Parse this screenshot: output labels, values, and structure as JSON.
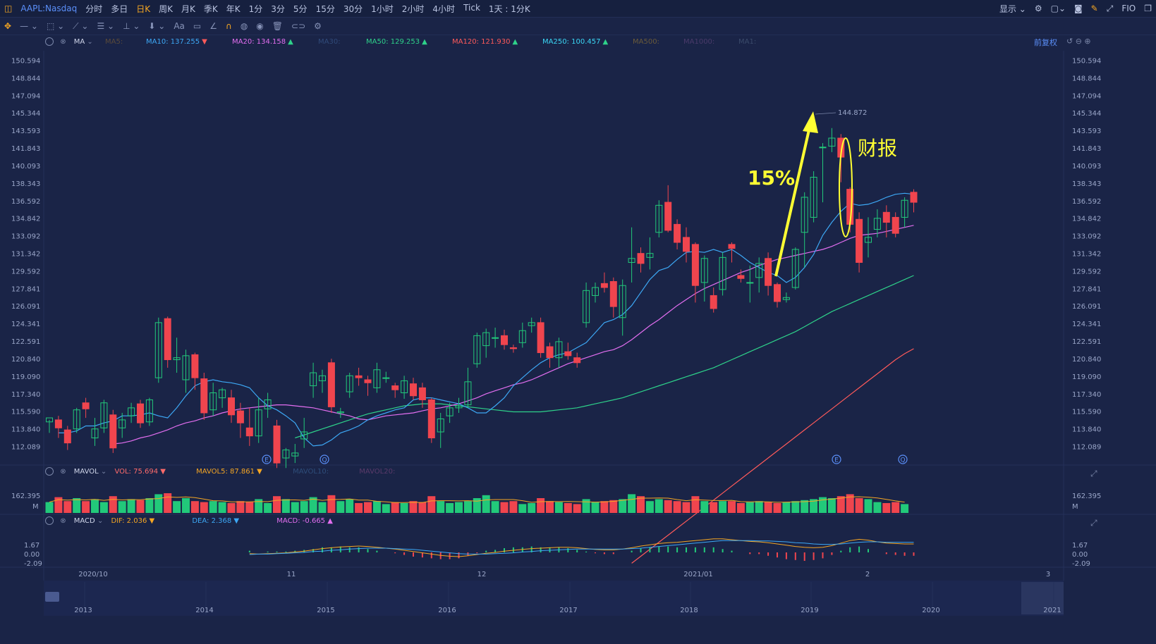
{
  "topbar": {
    "symbol": "AAPL:Nasdaq",
    "periods": [
      "分时",
      "多日",
      "日K",
      "周K",
      "月K",
      "季K",
      "年K",
      "1分",
      "3分",
      "5分",
      "15分",
      "30分",
      "1小时",
      "2小时",
      "4小时",
      "Tick",
      "1天 : 1分K"
    ],
    "active": "日K",
    "display_label": "显示",
    "fio_label": "FIO"
  },
  "ma_legend": {
    "title": "MA",
    "items": [
      {
        "label": "MA5:",
        "value": "",
        "color": "#5a4a3a"
      },
      {
        "label": "MA10:",
        "value": "137.255",
        "color": "#3da8f5",
        "arrow": "▼"
      },
      {
        "label": "MA20:",
        "value": "134.158",
        "color": "#e36ef0",
        "arrow": "▲"
      },
      {
        "label": "MA30:",
        "value": "",
        "color": "#304a7a"
      },
      {
        "label": "MA50:",
        "value": "129.253",
        "color": "#2ed28a",
        "arrow": "▲"
      },
      {
        "label": "MA120:",
        "value": "121.930",
        "color": "#ff5a5a",
        "arrow": "▲"
      },
      {
        "label": "MA250:",
        "value": "100.457",
        "color": "#3ad7f5",
        "arrow": "▲"
      },
      {
        "label": "MA500:",
        "value": "",
        "color": "#6a5a3a"
      },
      {
        "label": "MA1000:",
        "value": "",
        "color": "#4a3a6a"
      },
      {
        "label": "MA1:",
        "value": "",
        "color": "#3a4a6a"
      }
    ],
    "right_label": "前复权"
  },
  "vol_legend": {
    "title": "MAVOL",
    "vol": "VOL: 75.694 ▼",
    "mavol5": "MAVOL5: 87.861 ▼",
    "mavol10": "MAVOL10:",
    "mavol20": "MAVOL20:",
    "top_value": "162.395",
    "unit": "M"
  },
  "macd_legend": {
    "title": "MACD",
    "dif": "DIF: 2.036 ▼",
    "dea": "DEA: 2.368 ▼",
    "macd": "MACD: -0.665 ▲",
    "ticks": [
      "1.67",
      "0.00",
      "-2.09"
    ]
  },
  "price_axis": [
    "150.594",
    "148.844",
    "147.094",
    "145.344",
    "143.593",
    "141.843",
    "140.093",
    "138.343",
    "136.592",
    "134.842",
    "133.092",
    "131.342",
    "129.592",
    "127.841",
    "126.091",
    "124.341",
    "122.591",
    "120.840",
    "119.090",
    "117.340",
    "115.590",
    "113.840",
    "112.089"
  ],
  "date_axis": [
    "2020/10",
    "11",
    "12",
    "2021/01",
    "2",
    "3"
  ],
  "year_axis": [
    "2013",
    "2014",
    "2015",
    "2016",
    "2017",
    "2018",
    "2019",
    "2020",
    "2021"
  ],
  "annotations": {
    "peak_label": "144.872",
    "pct_label": "15%",
    "earnings_label": "财报",
    "event_markers": [
      "E",
      "Q",
      "E",
      "Q"
    ]
  },
  "chart_data": {
    "type": "candlestick",
    "title": "AAPL:Nasdaq 日K",
    "ylim": [
      111.0,
      151.5
    ],
    "candles": [
      [
        114.6,
        115.0,
        113.5,
        114.8
      ],
      [
        114.8,
        114.0,
        113.0,
        115.2
      ],
      [
        113.8,
        112.5,
        111.8,
        114.2
      ],
      [
        113.9,
        115.8,
        113.5,
        116.0
      ],
      [
        116.5,
        115.9,
        115.0,
        117.0
      ],
      [
        113.0,
        113.9,
        112.2,
        115.0
      ],
      [
        114.0,
        116.5,
        113.5,
        116.8
      ],
      [
        115.3,
        112.0,
        111.5,
        115.8
      ],
      [
        114.0,
        114.8,
        113.0,
        115.5
      ],
      [
        115.2,
        116.0,
        114.5,
        116.5
      ],
      [
        116.4,
        114.5,
        114.0,
        116.8
      ],
      [
        114.6,
        116.8,
        114.2,
        117.0
      ],
      [
        119.0,
        124.5,
        118.5,
        125.0
      ],
      [
        124.9,
        120.8,
        120.0,
        125.1
      ],
      [
        120.8,
        121.0,
        119.5,
        123.0
      ],
      [
        118.8,
        121.2,
        117.5,
        121.8
      ],
      [
        121.3,
        119.0,
        117.8,
        121.5
      ],
      [
        118.9,
        115.5,
        114.8,
        119.5
      ],
      [
        115.8,
        117.5,
        115.2,
        118.5
      ],
      [
        117.0,
        117.8,
        116.0,
        118.0
      ],
      [
        117.0,
        115.3,
        114.5,
        117.8
      ],
      [
        115.7,
        114.5,
        113.0,
        116.5
      ],
      [
        114.0,
        113.2,
        112.2,
        116.0
      ],
      [
        113.2,
        115.8,
        112.5,
        117.0
      ],
      [
        115.9,
        116.8,
        115.0,
        117.5
      ],
      [
        114.2,
        110.5,
        110.0,
        114.8
      ],
      [
        111.0,
        111.8,
        110.0,
        112.0
      ],
      [
        111.2,
        111.5,
        110.5,
        112.4
      ],
      [
        112.9,
        113.6,
        112.0,
        115.0
      ],
      [
        118.2,
        119.5,
        117.0,
        120.5
      ],
      [
        118.7,
        119.2,
        117.5,
        119.8
      ],
      [
        120.5,
        116.1,
        115.5,
        120.9
      ],
      [
        115.5,
        115.6,
        115.0,
        116.0
      ],
      [
        117.6,
        119.2,
        117.0,
        119.5
      ],
      [
        119.2,
        119.0,
        118.2,
        120.0
      ],
      [
        118.8,
        118.5,
        117.2,
        119.2
      ],
      [
        118.0,
        119.8,
        117.5,
        120.5
      ],
      [
        119.0,
        119.0,
        118.5,
        119.6
      ],
      [
        118.2,
        117.8,
        117.0,
        118.5
      ],
      [
        117.5,
        118.7,
        116.9,
        119.2
      ],
      [
        118.4,
        117.2,
        116.8,
        119.0
      ],
      [
        118.0,
        116.8,
        116.0,
        118.5
      ],
      [
        116.8,
        113.0,
        112.5,
        117.0
      ],
      [
        113.6,
        114.9,
        112.0,
        115.5
      ],
      [
        115.2,
        116.0,
        114.5,
        116.5
      ],
      [
        116.0,
        116.2,
        115.5,
        117.0
      ],
      [
        116.3,
        118.6,
        116.0,
        120.0
      ],
      [
        120.4,
        123.2,
        120.0,
        123.5
      ],
      [
        122.2,
        123.5,
        121.0,
        123.9
      ],
      [
        123.0,
        123.0,
        122.0,
        124.0
      ],
      [
        123.2,
        122.3,
        121.8,
        123.8
      ],
      [
        122.0,
        121.9,
        121.5,
        122.3
      ],
      [
        122.5,
        123.7,
        122.0,
        124.5
      ],
      [
        124.2,
        124.5,
        123.5,
        125.0
      ],
      [
        124.5,
        121.5,
        121.0,
        125.0
      ],
      [
        122.1,
        121.0,
        120.0,
        122.5
      ],
      [
        121.0,
        122.6,
        120.0,
        123.0
      ],
      [
        121.6,
        121.2,
        120.8,
        122.5
      ],
      [
        121.0,
        120.5,
        120.0,
        121.5
      ],
      [
        124.5,
        127.7,
        124.0,
        128.5
      ],
      [
        127.2,
        128.0,
        126.5,
        128.5
      ],
      [
        128.4,
        128.0,
        127.5,
        129.5
      ],
      [
        128.6,
        126.1,
        125.0,
        129.0
      ],
      [
        125.0,
        128.2,
        123.2,
        128.8
      ],
      [
        130.5,
        130.9,
        128.5,
        134.0
      ],
      [
        131.4,
        130.4,
        129.5,
        132.0
      ],
      [
        131.0,
        131.4,
        129.8,
        133.0
      ],
      [
        133.5,
        136.2,
        133.0,
        136.7
      ],
      [
        136.5,
        133.7,
        133.5,
        138.2
      ],
      [
        134.3,
        132.5,
        131.8,
        134.8
      ],
      [
        133.0,
        131.6,
        130.5,
        134.0
      ],
      [
        132.3,
        128.2,
        126.5,
        132.5
      ],
      [
        128.5,
        130.9,
        126.6,
        131.2
      ],
      [
        127.2,
        125.9,
        125.5,
        128.0
      ],
      [
        127.8,
        131.0,
        127.2,
        131.5
      ],
      [
        132.3,
        131.9,
        130.5,
        132.5
      ],
      [
        129.2,
        128.9,
        128.5,
        129.8
      ],
      [
        128.5,
        128.5,
        126.5,
        130.2
      ],
      [
        129.0,
        130.4,
        127.5,
        131.0
      ],
      [
        130.9,
        128.2,
        127.2,
        131.5
      ],
      [
        128.3,
        126.6,
        126.0,
        128.5
      ],
      [
        126.8,
        127.0,
        126.5,
        127.5
      ],
      [
        128.0,
        131.8,
        127.8,
        132.0
      ],
      [
        133.5,
        137.0,
        130.0,
        137.5
      ],
      [
        135.0,
        139.0,
        134.5,
        139.6
      ],
      [
        142.0,
        142.0,
        136.5,
        142.4
      ],
      [
        142.1,
        142.9,
        141.5,
        143.9
      ],
      [
        142.9,
        141.0,
        138.5,
        143.3
      ],
      [
        137.8,
        134.3,
        133.5,
        138.0
      ],
      [
        134.8,
        130.5,
        129.5,
        135.5
      ],
      [
        132.5,
        133.0,
        131.0,
        135.0
      ],
      [
        133.8,
        134.9,
        133.0,
        135.8
      ],
      [
        135.5,
        134.5,
        133.0,
        136.2
      ],
      [
        135.0,
        133.4,
        133.0,
        135.5
      ],
      [
        135.0,
        136.7,
        134.0,
        137.0
      ],
      [
        137.5,
        136.5,
        135.5,
        137.8
      ]
    ],
    "ma10": [
      113.5,
      113.5,
      113.7,
      114.2,
      114.2,
      114.5,
      114.7,
      115.2,
      115.2,
      115.3,
      115.5,
      115.2,
      115.0,
      116.0,
      117.2,
      118.2,
      118.6,
      118.8,
      118.6,
      118.5,
      118.3,
      118.0,
      117.0,
      116.2,
      115.8,
      115.2,
      114.5,
      113.0,
      112.2,
      112.3,
      112.8,
      113.5,
      113.8,
      114.2,
      114.8,
      115.2,
      115.5,
      115.8,
      116.0,
      116.8,
      117.0,
      117.0,
      116.8,
      116.6,
      116.4,
      116.0,
      115.5,
      115.5,
      116.2,
      117.0,
      118.2,
      119.0,
      119.8,
      120.5,
      121.0,
      121.3,
      121.5,
      122.0,
      122.5,
      123.5,
      124.5,
      124.8,
      125.3,
      126.2,
      127.5,
      128.8,
      129.7,
      130.0,
      130.8,
      131.5,
      131.6,
      131.5,
      131.8,
      131.5,
      131.8,
      131.2,
      130.5,
      130.0,
      129.5,
      129.2,
      128.5,
      129.0,
      130.0,
      131.3,
      133.2,
      134.5,
      135.6,
      136.4,
      136.2,
      136.3,
      136.6,
      137.0,
      137.3,
      137.4,
      137.3
    ],
    "ma20": [
      112.4,
      112.5,
      112.7,
      113.0,
      113.2,
      113.5,
      113.8,
      114.2,
      114.5,
      114.7,
      115.0,
      115.2,
      115.5,
      115.7,
      115.9,
      116.0,
      116.1,
      116.2,
      116.3,
      116.3,
      116.2,
      116.1,
      116.0,
      115.8,
      115.6,
      115.4,
      115.2,
      114.9,
      114.8,
      115.0,
      115.2,
      115.3,
      115.4,
      115.5,
      115.7,
      115.9,
      116.0,
      116.2,
      116.4,
      116.7,
      117.0,
      117.4,
      117.7,
      118.0,
      118.3,
      118.5,
      118.8,
      119.2,
      119.6,
      120.0,
      120.4,
      120.7,
      121.0,
      121.3,
      121.6,
      121.8,
      122.2,
      122.8,
      123.5,
      124.2,
      124.8,
      125.5,
      126.2,
      126.8,
      127.4,
      127.9,
      128.3,
      128.7,
      129.1,
      129.5,
      129.8,
      130.2,
      130.5,
      130.8,
      131.0,
      131.2,
      131.4,
      131.6,
      131.8,
      132.1,
      132.5,
      132.9,
      133.2,
      133.3,
      133.4,
      133.6,
      133.8,
      134.0,
      134.2
    ],
    "ma50": [
      113.0,
      113.3,
      113.6,
      113.9,
      114.2,
      114.5,
      114.8,
      115.1,
      115.4,
      115.6,
      115.8,
      116.0,
      116.2,
      116.3,
      116.4,
      116.4,
      116.4,
      116.3,
      116.2,
      116.1,
      116.0,
      115.9,
      115.8,
      115.7,
      115.6,
      115.6,
      115.6,
      115.6,
      115.7,
      115.8,
      115.9,
      116.0,
      116.2,
      116.4,
      116.6,
      116.8,
      117.0,
      117.3,
      117.6,
      117.9,
      118.2,
      118.5,
      118.8,
      119.1,
      119.4,
      119.7,
      120.0,
      120.4,
      120.8,
      121.2,
      121.6,
      122.0,
      122.4,
      122.8,
      123.2,
      123.6,
      124.1,
      124.6,
      125.1,
      125.6,
      126.0,
      126.4,
      126.8,
      127.2,
      127.6,
      128.0,
      128.4,
      128.8,
      129.2
    ],
    "ma120": [
      100.5,
      101.2,
      101.9,
      102.6,
      103.3,
      104.0,
      104.7,
      105.4,
      106.1,
      106.8,
      107.5,
      108.2,
      108.9,
      109.6,
      110.3,
      111.0,
      111.7,
      112.4,
      113.1,
      113.8,
      114.5,
      115.2,
      115.9,
      116.6,
      117.3,
      118.0,
      118.7,
      119.4,
      120.1,
      120.8,
      121.4,
      121.9
    ],
    "volume": [
      0.55,
      0.8,
      0.6,
      0.75,
      0.6,
      0.7,
      0.55,
      0.85,
      0.6,
      0.7,
      0.65,
      0.75,
      0.95,
      1.0,
      0.6,
      0.75,
      0.6,
      0.55,
      0.6,
      0.55,
      0.5,
      0.6,
      0.55,
      0.7,
      0.5,
      0.85,
      0.7,
      0.55,
      0.6,
      0.8,
      0.55,
      0.9,
      0.6,
      0.7,
      0.5,
      0.55,
      0.6,
      0.45,
      0.55,
      0.5,
      0.6,
      0.55,
      0.85,
      0.6,
      0.5,
      0.55,
      0.6,
      0.75,
      0.9,
      0.6,
      0.55,
      0.6,
      0.45,
      0.5,
      0.75,
      0.6,
      0.55,
      0.5,
      0.45,
      0.7,
      0.55,
      0.6,
      0.65,
      0.7,
      0.95,
      0.85,
      0.6,
      0.7,
      0.65,
      0.6,
      0.55,
      0.85,
      0.6,
      0.55,
      0.6,
      0.6,
      0.5,
      0.55,
      0.6,
      0.55,
      0.5,
      0.55,
      0.6,
      0.65,
      0.7,
      0.8,
      0.75,
      0.85,
      0.95,
      0.75,
      0.7,
      0.55,
      0.5,
      0.55,
      0.45
    ],
    "dif": [
      -0.3,
      -0.4,
      -0.3,
      -0.2,
      -0.1,
      0.1,
      0.3,
      0.6,
      0.9,
      1.1,
      1.3,
      1.4,
      1.5,
      1.4,
      1.2,
      1.0,
      0.8,
      0.5,
      0.2,
      -0.1,
      -0.4,
      -0.7,
      -0.9,
      -1.0,
      -0.8,
      -0.5,
      -0.2,
      0.0,
      0.3,
      0.5,
      0.7,
      0.9,
      1.0,
      1.1,
      1.2,
      1.2,
      1.1,
      0.9,
      0.7,
      0.6,
      0.6,
      0.8,
      1.1,
      1.5,
      1.8,
      2.1,
      2.3,
      2.4,
      2.6,
      2.8,
      3.0,
      3.2,
      3.2,
      3.0,
      2.8,
      2.6,
      2.5,
      2.3,
      2.0,
      1.7,
      1.4,
      1.2,
      1.1,
      1.2,
      1.6,
      2.2,
      2.8,
      3.1,
      2.9,
      2.5,
      2.2,
      2.1,
      2.0,
      2.0
    ],
    "dea": [
      -0.5,
      -0.4,
      -0.4,
      -0.3,
      -0.2,
      -0.1,
      0.0,
      0.2,
      0.3,
      0.5,
      0.6,
      0.8,
      0.9,
      1.0,
      1.0,
      1.0,
      0.9,
      0.8,
      0.7,
      0.5,
      0.3,
      0.1,
      -0.1,
      -0.3,
      -0.4,
      -0.4,
      -0.4,
      -0.3,
      -0.2,
      -0.1,
      0.1,
      0.2,
      0.4,
      0.5,
      0.6,
      0.7,
      0.8,
      0.8,
      0.8,
      0.8,
      0.8,
      0.8,
      0.9,
      1.0,
      1.2,
      1.4,
      1.6,
      1.8,
      2.0,
      2.2,
      2.4,
      2.6,
      2.8,
      2.8,
      2.8,
      2.8,
      2.7,
      2.7,
      2.6,
      2.5,
      2.3,
      2.2,
      2.0,
      1.9,
      1.9,
      2.0,
      2.2,
      2.4,
      2.5,
      2.5,
      2.4,
      2.4,
      2.4,
      2.4
    ]
  }
}
